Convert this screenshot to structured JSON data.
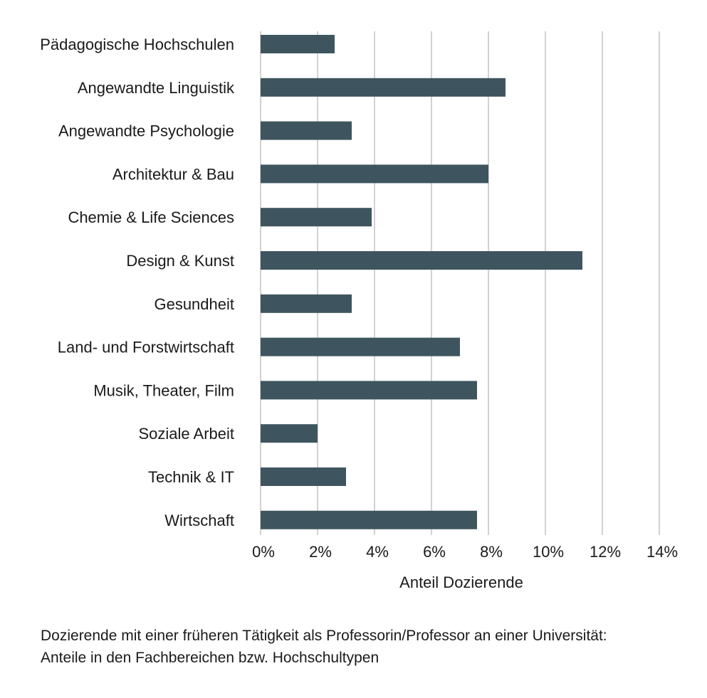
{
  "chart_data": {
    "type": "bar",
    "orientation": "horizontal",
    "categories": [
      "Pädagogische Hochschulen",
      "Angewandte Linguistik",
      "Angewandte Psychologie",
      "Architektur & Bau",
      "Chemie & Life Sciences",
      "Design & Kunst",
      "Gesundheit",
      "Land- und Forstwirtschaft",
      "Musik, Theater, Film",
      "Soziale Arbeit",
      "Technik & IT",
      "Wirtschaft"
    ],
    "values": [
      2.6,
      8.6,
      3.2,
      8.0,
      3.9,
      11.3,
      3.2,
      7.0,
      7.6,
      2.0,
      3.0,
      7.6
    ],
    "xlabel": "Anteil Dozierende",
    "ylabel": "",
    "xlim": [
      0,
      14
    ],
    "ticks": [
      0,
      2,
      4,
      6,
      8,
      10,
      12,
      14
    ],
    "tick_labels": [
      "0%",
      "2%",
      "4%",
      "6%",
      "8%",
      "10%",
      "12%",
      "14%"
    ],
    "grid": true,
    "legend": "none",
    "colors": {
      "bar": "#3e555f",
      "grid": "#b3b3b3"
    }
  },
  "caption": {
    "line1": "Dozierende mit einer früheren Tätigkeit als Professorin/Professor an einer Universität:",
    "line2": "Anteile in den Fachbereichen bzw. Hochschultypen"
  }
}
